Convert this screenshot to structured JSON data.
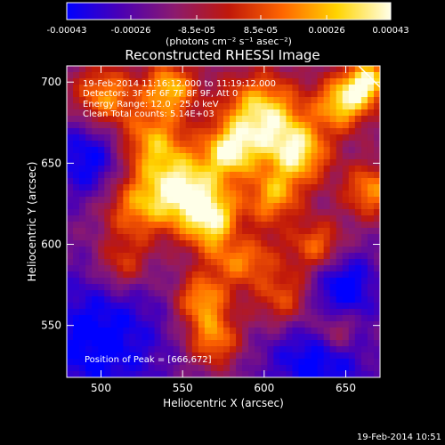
{
  "title": "Reconstructed RHESSI Image",
  "colorbar": {
    "ticks": [
      "-0.00043",
      "-0.00026",
      "-8.5e-05",
      "8.5e-05",
      "0.00026",
      "0.00043"
    ],
    "tick_values": [
      -0.00043,
      -0.00026,
      -8.5e-05,
      8.5e-05,
      0.00026,
      0.00043
    ],
    "range": [
      -0.00043,
      0.00043
    ],
    "units": "(photons cm⁻² s⁻¹ asec⁻²)",
    "colors": [
      "#0000ff",
      "#4b00b4",
      "#8c1a6e",
      "#c0180a",
      "#ff6600",
      "#ffd400",
      "#ffffe8"
    ]
  },
  "annotations": {
    "time": "19-Feb-2014 11:16:12.000 to 11:19:12.000",
    "detectors": "Detectors: 3F 5F 6F 7F 8F 9F, Att 0",
    "energy": "Energy Range: 12.0 - 25.0 keV",
    "clean": "Clean    Total counts: 5.14E+03",
    "peak": "Position of Peak = [666,672]"
  },
  "footer_timestamp": "19-Feb-2014 10:51",
  "chart_data": {
    "type": "heatmap",
    "title": "Reconstructed RHESSI Image",
    "xlabel": "Heliocentric X (arcsec)",
    "ylabel": "Heliocentric Y (arcsec)",
    "xlim": [
      479,
      671
    ],
    "ylim": [
      518,
      710
    ],
    "x_ticks": [
      500,
      550,
      600,
      650
    ],
    "y_ticks": [
      550,
      600,
      650,
      700
    ],
    "x_tick_labels": [
      "500",
      "550",
      "600",
      "650"
    ],
    "y_tick_labels": [
      "550",
      "600",
      "650",
      "700"
    ],
    "peak_position": [
      666,
      672
    ],
    "value_range": [
      -0.00043,
      0.00043
    ]
  }
}
